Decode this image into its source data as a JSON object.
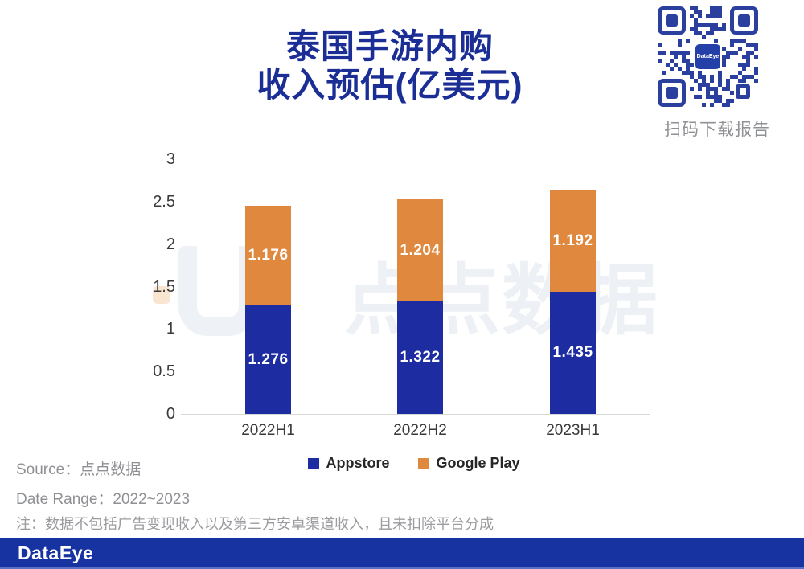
{
  "title": {
    "line1": "泰国手游内购",
    "line2": "收入预估(亿美元)",
    "color": "#1B2E96"
  },
  "qr_block": {
    "caption": "扫码下载报告",
    "center_logo": "DataEye",
    "qr_color": "#2B3F9E"
  },
  "chart_data": {
    "type": "bar",
    "stacked": true,
    "title": "泰国手游内购收入预估(亿美元)",
    "categories": [
      "2022H1",
      "2022H2",
      "2023H1"
    ],
    "series": [
      {
        "name": "Appstore",
        "color": "#1D2DA1",
        "values": [
          1.276,
          1.322,
          1.435
        ]
      },
      {
        "name": "Google Play",
        "color": "#E0883D",
        "values": [
          1.176,
          1.204,
          1.192
        ]
      }
    ],
    "xlabel": "",
    "ylabel": "",
    "ylim": [
      0,
      3
    ],
    "yticks": [
      0,
      0.5,
      1,
      1.5,
      2,
      2.5,
      3
    ],
    "grid": false,
    "legend_position": "bottom",
    "value_labels": true
  },
  "watermark": {
    "text": "点点数据"
  },
  "notes": {
    "source": "Source：点点数据",
    "date_range": "Date Range：2022~2023",
    "note": "注：数据不包括广告变现收入以及第三方安卓渠道收入，且未扣除平台分成"
  },
  "footer": {
    "logo": "DataEye",
    "bar_color": "#1733A1"
  }
}
